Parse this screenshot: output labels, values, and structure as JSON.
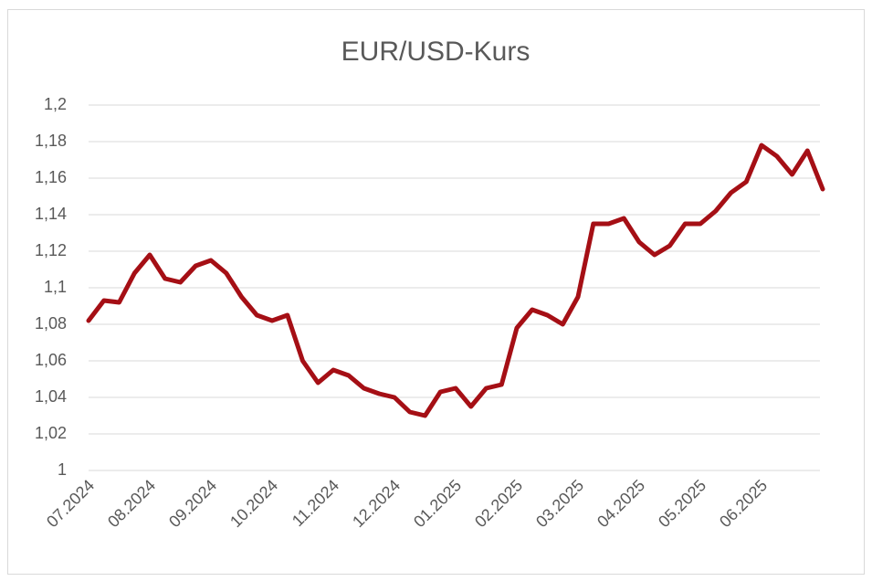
{
  "chart_data": {
    "type": "line",
    "title": "EUR/USD-Kurs",
    "categories": [
      "07.2024",
      null,
      null,
      null,
      "08.2024",
      null,
      null,
      null,
      "09.2024",
      null,
      null,
      null,
      "10.2024",
      null,
      null,
      null,
      "11.2024",
      null,
      null,
      null,
      "12.2024",
      null,
      null,
      null,
      "01.2025",
      null,
      null,
      null,
      "02.2025",
      null,
      null,
      null,
      "03.2025",
      null,
      null,
      null,
      "04.2025",
      null,
      null,
      null,
      "05.2025",
      null,
      null,
      null,
      "06.2025",
      null,
      null,
      null,
      null
    ],
    "series": [
      {
        "name": "EUR/USD",
        "color": "#a50f15",
        "values": [
          1.082,
          1.093,
          1.092,
          1.108,
          1.118,
          1.105,
          1.103,
          1.112,
          1.115,
          1.108,
          1.095,
          1.085,
          1.082,
          1.085,
          1.06,
          1.048,
          1.055,
          1.052,
          1.045,
          1.042,
          1.04,
          1.032,
          1.03,
          1.043,
          1.045,
          1.035,
          1.045,
          1.047,
          1.078,
          1.088,
          1.085,
          1.08,
          1.095,
          1.135,
          1.135,
          1.138,
          1.125,
          1.118,
          1.123,
          1.135,
          1.135,
          1.142,
          1.152,
          1.158,
          1.178,
          1.172,
          1.162,
          1.175,
          1.154
        ]
      }
    ],
    "ylim": [
      1,
      1.2
    ],
    "yticks": [
      1,
      {
        "value": 1.02,
        "label": "1,02"
      },
      {
        "value": 1.04,
        "label": "1,04"
      },
      {
        "value": 1.06,
        "label": "1,06"
      },
      {
        "value": 1.08,
        "label": "1,08"
      },
      {
        "value": 1.1,
        "label": "1,1"
      },
      {
        "value": 1.12,
        "label": "1,12"
      },
      {
        "value": 1.14,
        "label": "1,14"
      },
      {
        "value": 1.16,
        "label": "1,16"
      },
      {
        "value": 1.18,
        "label": "1,18"
      },
      {
        "value": 1.2,
        "label": "1,2"
      }
    ],
    "grid": true
  }
}
